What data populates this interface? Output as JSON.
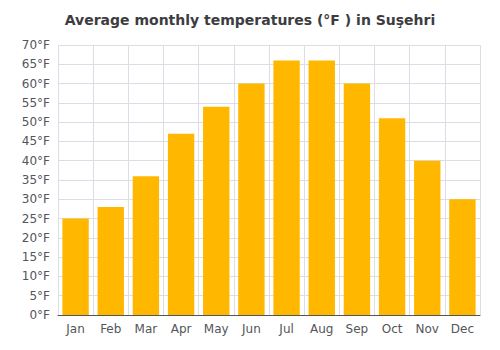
{
  "chart_data": {
    "type": "bar",
    "title": "Average monthly temperatures (°F ) in Suşehri",
    "categories": [
      "Jan",
      "Feb",
      "Mar",
      "Apr",
      "May",
      "Jun",
      "Jul",
      "Aug",
      "Sep",
      "Oct",
      "Nov",
      "Dec"
    ],
    "values": [
      25,
      28,
      36,
      47,
      54,
      60,
      66,
      66,
      60,
      51,
      40,
      30
    ],
    "color": "#FFB700",
    "ylim": [
      0,
      70
    ],
    "yticks": [
      {
        "value": 0,
        "label": "0°F"
      },
      {
        "value": 5,
        "label": "5°F"
      },
      {
        "value": 10,
        "label": "10°F"
      },
      {
        "value": 15,
        "label": "15°F"
      },
      {
        "value": 20,
        "label": "20°F"
      },
      {
        "value": 25,
        "label": "25°F"
      },
      {
        "value": 30,
        "label": "30°F"
      },
      {
        "value": 35,
        "label": "35°F"
      },
      {
        "value": 40,
        "label": "40°F"
      },
      {
        "value": 45,
        "label": "45°F"
      },
      {
        "value": 50,
        "label": "50°F"
      },
      {
        "value": 55,
        "label": "55°F"
      },
      {
        "value": 60,
        "label": "60°F"
      },
      {
        "value": 65,
        "label": "65°F"
      },
      {
        "value": 70,
        "label": "70°F"
      }
    ],
    "grid": true
  }
}
